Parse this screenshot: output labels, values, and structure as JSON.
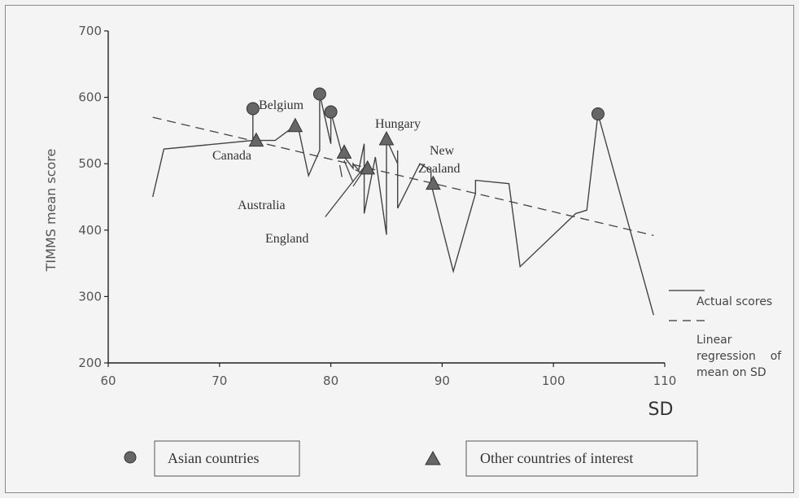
{
  "chart_data": {
    "type": "line",
    "ylabel": "TIMMS mean score",
    "xlabel": "SD",
    "xlim": [
      60,
      110
    ],
    "ylim": [
      200,
      700
    ],
    "x_ticks": [
      60,
      70,
      80,
      90,
      100,
      110
    ],
    "y_ticks": [
      200,
      300,
      400,
      500,
      600,
      700
    ],
    "series": [
      {
        "name": "Actual scores",
        "style": "solid",
        "points": [
          [
            64,
            450
          ],
          [
            65,
            522
          ],
          [
            73,
            535
          ],
          [
            73,
            583
          ],
          [
            73,
            535
          ],
          [
            75,
            535
          ],
          [
            77,
            560
          ],
          [
            78,
            482
          ],
          [
            79,
            520
          ],
          [
            79,
            605
          ],
          [
            80,
            530
          ],
          [
            80,
            578
          ],
          [
            81,
            515
          ],
          [
            82,
            493
          ],
          [
            82,
            500
          ],
          [
            82.5,
            490
          ],
          [
            83,
            530
          ],
          [
            83,
            425
          ],
          [
            84,
            510
          ],
          [
            85,
            393
          ],
          [
            85,
            537
          ],
          [
            86,
            500
          ],
          [
            86,
            520
          ],
          [
            86,
            433
          ],
          [
            88,
            500
          ],
          [
            89,
            490
          ],
          [
            89,
            470
          ],
          [
            91,
            338
          ],
          [
            93,
            455
          ],
          [
            93,
            475
          ],
          [
            96,
            470
          ],
          [
            97,
            345
          ],
          [
            102,
            425
          ],
          [
            103,
            430
          ],
          [
            104,
            575
          ],
          [
            109,
            272
          ]
        ]
      },
      {
        "name": "Linear regression of mean on SD",
        "style": "dashed",
        "points": [
          [
            64,
            570
          ],
          [
            109,
            392
          ]
        ]
      }
    ],
    "asian_points": [
      [
        73,
        583
      ],
      [
        79,
        605
      ],
      [
        80,
        578
      ],
      [
        104,
        575
      ]
    ],
    "other_points": [
      [
        73.3,
        535
      ],
      [
        76.8,
        557
      ],
      [
        81.2,
        517
      ],
      [
        83.3,
        493
      ],
      [
        85,
        537
      ],
      [
        89.2,
        470
      ]
    ],
    "annotations": [
      {
        "text": "Belgium"
      },
      {
        "text": "Canada"
      },
      {
        "text": "Hungary"
      },
      {
        "text": "New"
      },
      {
        "text": "Zealand"
      },
      {
        "text": "Australia"
      },
      {
        "text": "England"
      }
    ],
    "legend_line": {
      "actual": "Actual scores",
      "regression_lines": [
        "Linear",
        "regression    of",
        "mean on SD"
      ]
    },
    "legend_markers": {
      "asian": "Asian countries",
      "other": "Other countries of interest"
    }
  }
}
